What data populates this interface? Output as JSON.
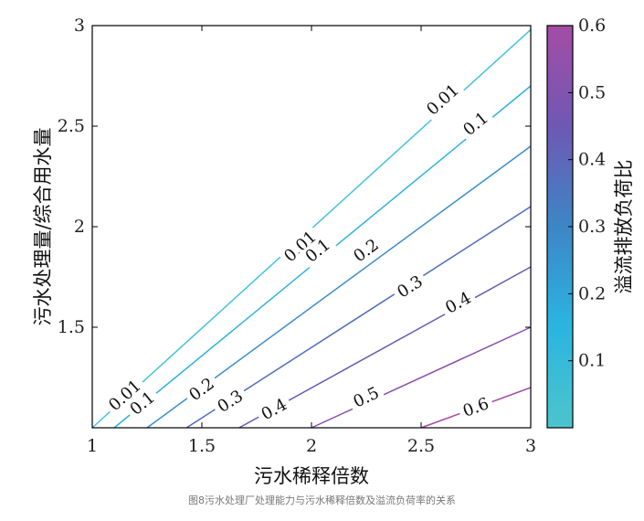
{
  "chart_data": {
    "type": "contour",
    "xlabel": "污水稀释倍数",
    "ylabel": "污水处理量/综合用水量",
    "colorbar_label": "溢流排放负荷比",
    "xlim": [
      1,
      3
    ],
    "ylim": [
      1,
      3
    ],
    "x_ticks": [
      "1",
      "1.5",
      "2",
      "2.5",
      "3"
    ],
    "y_ticks": [
      "1.5",
      "2",
      "2.5",
      "3"
    ],
    "colorbar_range": [
      0,
      0.6
    ],
    "colorbar_ticks": [
      "0.1",
      "0.2",
      "0.3",
      "0.4",
      "0.5",
      "0.6"
    ],
    "colors": {
      "low": "#4dc4cc",
      "mid_low": "#2ab5e0",
      "mid": "#3d86c6",
      "mid_high": "#6f58b3",
      "high": "#a44ca6"
    },
    "series": [
      {
        "level": "0.01",
        "color": "#40c3dc",
        "points": [
          [
            1.0,
            1.0
          ],
          [
            3.0,
            2.98
          ]
        ]
      },
      {
        "level": "0.1",
        "color": "#2cb2df",
        "points": [
          [
            1.1,
            1.0
          ],
          [
            3.0,
            2.7
          ]
        ]
      },
      {
        "level": "0.2",
        "color": "#3d8ecb",
        "points": [
          [
            1.25,
            1.0
          ],
          [
            3.0,
            2.4
          ]
        ]
      },
      {
        "level": "0.3",
        "color": "#4f6cc0",
        "points": [
          [
            1.43,
            1.0
          ],
          [
            3.0,
            2.1
          ]
        ]
      },
      {
        "level": "0.4",
        "color": "#6858b5",
        "points": [
          [
            1.67,
            1.0
          ],
          [
            3.0,
            1.8
          ]
        ]
      },
      {
        "level": "0.5",
        "color": "#8a4fad",
        "points": [
          [
            2.0,
            1.0
          ],
          [
            3.0,
            1.5
          ]
        ]
      },
      {
        "level": "0.6",
        "color": "#a84ba8",
        "points": [
          [
            2.5,
            1.0
          ],
          [
            3.0,
            1.2
          ]
        ]
      }
    ],
    "contour_labels": [
      {
        "text": "0.01",
        "x": 1.95,
        "y": 1.9
      },
      {
        "text": "0.01",
        "x": 2.6,
        "y": 2.63
      },
      {
        "text": "0.01",
        "x": 1.15,
        "y": 1.16
      },
      {
        "text": "0.1",
        "x": 2.03,
        "y": 1.88
      },
      {
        "text": "0.1",
        "x": 2.75,
        "y": 2.51
      },
      {
        "text": "0.1",
        "x": 1.23,
        "y": 1.12
      },
      {
        "text": "0.2",
        "x": 2.25,
        "y": 1.88
      },
      {
        "text": "0.2",
        "x": 1.5,
        "y": 1.19
      },
      {
        "text": "0.3",
        "x": 2.45,
        "y": 1.7
      },
      {
        "text": "0.3",
        "x": 1.63,
        "y": 1.13
      },
      {
        "text": "0.4",
        "x": 2.67,
        "y": 1.62
      },
      {
        "text": "0.4",
        "x": 1.83,
        "y": 1.09
      },
      {
        "text": "0.5",
        "x": 2.25,
        "y": 1.15
      },
      {
        "text": "0.6",
        "x": 2.75,
        "y": 1.1
      }
    ]
  },
  "caption": "图8污水处理厂处理能力与污水稀释倍数及溢流负荷率的关系"
}
